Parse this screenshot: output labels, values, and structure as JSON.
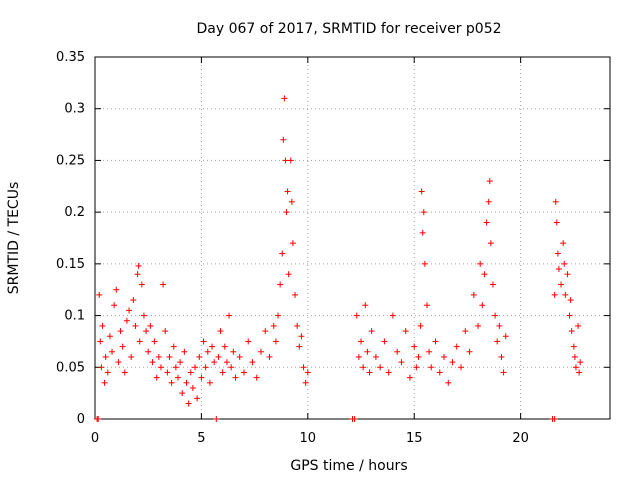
{
  "chart_data": {
    "type": "scatter",
    "title": "Day 067 of 2017, SRMTID for receiver p052",
    "xlabel": "GPS time / hours",
    "ylabel": "SRMTID / TECUs",
    "xlim": [
      0,
      24.2
    ],
    "ylim": [
      0,
      0.35
    ],
    "x_ticks": [
      0,
      5,
      10,
      15,
      20
    ],
    "x_tick_labels": [
      "0",
      "5",
      "10",
      "15",
      "20"
    ],
    "y_ticks": [
      0,
      0.05,
      0.1,
      0.15,
      0.2,
      0.25,
      0.3,
      0.35
    ],
    "y_tick_labels": [
      "0",
      "0.05",
      "0.1",
      "0.15",
      "0.2",
      "0.25",
      "0.3",
      "0.35"
    ],
    "grid": true,
    "marker": "+",
    "series": [
      {
        "name": "SRMTID",
        "color": "#ff0000",
        "points": [
          [
            0.1,
            0.0
          ],
          [
            0.15,
            0.0
          ],
          [
            0.2,
            0.12
          ],
          [
            0.25,
            0.075
          ],
          [
            0.3,
            0.05
          ],
          [
            0.35,
            0.09
          ],
          [
            0.45,
            0.035
          ],
          [
            0.5,
            0.06
          ],
          [
            0.6,
            0.045
          ],
          [
            0.7,
            0.08
          ],
          [
            0.8,
            0.065
          ],
          [
            0.9,
            0.11
          ],
          [
            1.0,
            0.125
          ],
          [
            1.1,
            0.055
          ],
          [
            1.2,
            0.085
          ],
          [
            1.3,
            0.07
          ],
          [
            1.4,
            0.045
          ],
          [
            1.5,
            0.095
          ],
          [
            1.6,
            0.105
          ],
          [
            1.7,
            0.06
          ],
          [
            1.8,
            0.115
          ],
          [
            1.9,
            0.09
          ],
          [
            2.0,
            0.14
          ],
          [
            2.05,
            0.148
          ],
          [
            2.1,
            0.075
          ],
          [
            2.2,
            0.13
          ],
          [
            2.3,
            0.1
          ],
          [
            2.4,
            0.085
          ],
          [
            2.5,
            0.065
          ],
          [
            2.6,
            0.09
          ],
          [
            2.7,
            0.055
          ],
          [
            2.8,
            0.075
          ],
          [
            2.9,
            0.04
          ],
          [
            3.0,
            0.06
          ],
          [
            3.1,
            0.05
          ],
          [
            3.2,
            0.13
          ],
          [
            3.3,
            0.085
          ],
          [
            3.4,
            0.045
          ],
          [
            3.5,
            0.06
          ],
          [
            3.6,
            0.035
          ],
          [
            3.7,
            0.07
          ],
          [
            3.8,
            0.05
          ],
          [
            3.9,
            0.04
          ],
          [
            4.0,
            0.055
          ],
          [
            4.1,
            0.025
          ],
          [
            4.2,
            0.065
          ],
          [
            4.3,
            0.035
          ],
          [
            4.4,
            0.015
          ],
          [
            4.5,
            0.045
          ],
          [
            4.6,
            0.03
          ],
          [
            4.7,
            0.05
          ],
          [
            4.8,
            0.02
          ],
          [
            4.9,
            0.06
          ],
          [
            5.0,
            0.04
          ],
          [
            5.1,
            0.075
          ],
          [
            5.2,
            0.05
          ],
          [
            5.3,
            0.065
          ],
          [
            5.4,
            0.035
          ],
          [
            5.5,
            0.07
          ],
          [
            5.6,
            0.055
          ],
          [
            5.7,
            0.0
          ],
          [
            5.8,
            0.06
          ],
          [
            5.9,
            0.085
          ],
          [
            6.0,
            0.045
          ],
          [
            6.1,
            0.07
          ],
          [
            6.2,
            0.055
          ],
          [
            6.3,
            0.1
          ],
          [
            6.4,
            0.05
          ],
          [
            6.5,
            0.065
          ],
          [
            6.6,
            0.04
          ],
          [
            6.8,
            0.06
          ],
          [
            7.0,
            0.045
          ],
          [
            7.2,
            0.075
          ],
          [
            7.4,
            0.055
          ],
          [
            7.6,
            0.04
          ],
          [
            7.8,
            0.065
          ],
          [
            8.0,
            0.085
          ],
          [
            8.2,
            0.06
          ],
          [
            8.4,
            0.09
          ],
          [
            8.5,
            0.075
          ],
          [
            8.6,
            0.1
          ],
          [
            8.7,
            0.13
          ],
          [
            8.8,
            0.16
          ],
          [
            8.85,
            0.27
          ],
          [
            8.9,
            0.31
          ],
          [
            8.95,
            0.25
          ],
          [
            9.0,
            0.2
          ],
          [
            9.05,
            0.22
          ],
          [
            9.1,
            0.14
          ],
          [
            9.2,
            0.25
          ],
          [
            9.25,
            0.21
          ],
          [
            9.3,
            0.17
          ],
          [
            9.4,
            0.12
          ],
          [
            9.5,
            0.09
          ],
          [
            9.6,
            0.07
          ],
          [
            9.7,
            0.08
          ],
          [
            9.8,
            0.05
          ],
          [
            9.9,
            0.035
          ],
          [
            10.0,
            0.045
          ],
          [
            12.1,
            0.0
          ],
          [
            12.2,
            0.0
          ],
          [
            12.3,
            0.1
          ],
          [
            12.4,
            0.06
          ],
          [
            12.5,
            0.075
          ],
          [
            12.6,
            0.05
          ],
          [
            12.7,
            0.11
          ],
          [
            12.8,
            0.065
          ],
          [
            12.9,
            0.045
          ],
          [
            13.0,
            0.085
          ],
          [
            13.2,
            0.06
          ],
          [
            13.4,
            0.05
          ],
          [
            13.6,
            0.075
          ],
          [
            13.8,
            0.045
          ],
          [
            14.0,
            0.1
          ],
          [
            14.2,
            0.065
          ],
          [
            14.4,
            0.055
          ],
          [
            14.6,
            0.085
          ],
          [
            14.8,
            0.04
          ],
          [
            15.0,
            0.07
          ],
          [
            15.1,
            0.05
          ],
          [
            15.2,
            0.06
          ],
          [
            15.3,
            0.09
          ],
          [
            15.35,
            0.22
          ],
          [
            15.4,
            0.18
          ],
          [
            15.45,
            0.2
          ],
          [
            15.5,
            0.15
          ],
          [
            15.6,
            0.11
          ],
          [
            15.7,
            0.065
          ],
          [
            15.8,
            0.05
          ],
          [
            16.0,
            0.075
          ],
          [
            16.2,
            0.045
          ],
          [
            16.4,
            0.06
          ],
          [
            16.6,
            0.035
          ],
          [
            16.8,
            0.055
          ],
          [
            17.0,
            0.07
          ],
          [
            17.2,
            0.05
          ],
          [
            17.4,
            0.085
          ],
          [
            17.6,
            0.065
          ],
          [
            17.8,
            0.12
          ],
          [
            18.0,
            0.09
          ],
          [
            18.1,
            0.15
          ],
          [
            18.2,
            0.11
          ],
          [
            18.3,
            0.14
          ],
          [
            18.4,
            0.19
          ],
          [
            18.5,
            0.21
          ],
          [
            18.55,
            0.23
          ],
          [
            18.6,
            0.17
          ],
          [
            18.7,
            0.13
          ],
          [
            18.8,
            0.1
          ],
          [
            18.9,
            0.075
          ],
          [
            19.0,
            0.09
          ],
          [
            19.1,
            0.06
          ],
          [
            19.2,
            0.045
          ],
          [
            19.3,
            0.08
          ],
          [
            21.5,
            0.0
          ],
          [
            21.6,
            0.0
          ],
          [
            21.6,
            0.12
          ],
          [
            21.65,
            0.21
          ],
          [
            21.7,
            0.19
          ],
          [
            21.75,
            0.16
          ],
          [
            21.8,
            0.145
          ],
          [
            21.9,
            0.13
          ],
          [
            22.0,
            0.17
          ],
          [
            22.05,
            0.15
          ],
          [
            22.1,
            0.12
          ],
          [
            22.2,
            0.14
          ],
          [
            22.3,
            0.1
          ],
          [
            22.35,
            0.115
          ],
          [
            22.4,
            0.085
          ],
          [
            22.5,
            0.07
          ],
          [
            22.55,
            0.06
          ],
          [
            22.6,
            0.05
          ],
          [
            22.7,
            0.09
          ],
          [
            22.75,
            0.045
          ],
          [
            22.8,
            0.055
          ]
        ]
      }
    ]
  }
}
